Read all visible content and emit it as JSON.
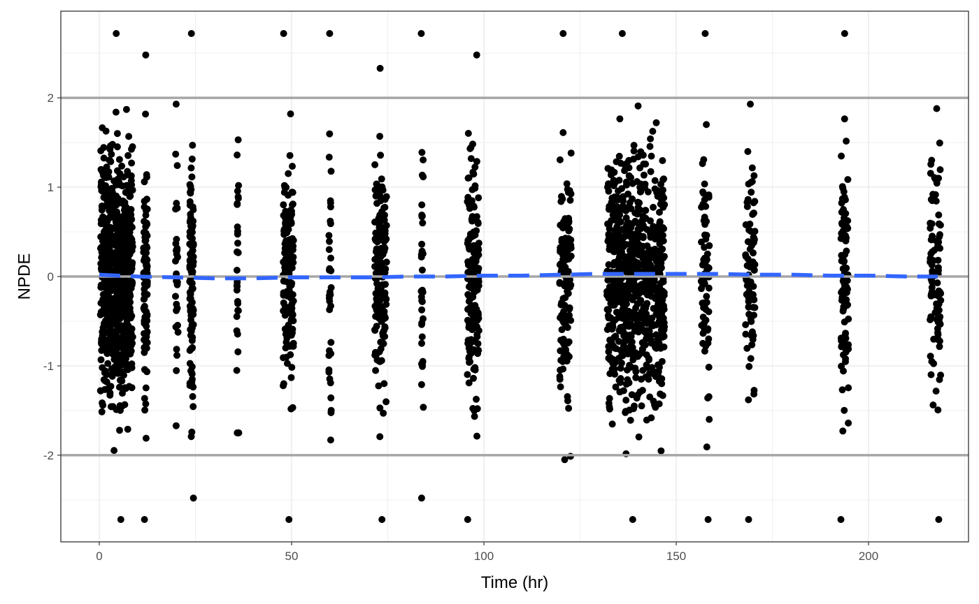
{
  "chart_data": {
    "type": "scatter",
    "title": "",
    "xlabel": "Time (hr)",
    "ylabel": "NPDE",
    "xlim": [
      -10,
      226
    ],
    "ylim": [
      -2.97,
      2.97
    ],
    "x_ticks": [
      0,
      50,
      100,
      150,
      200
    ],
    "x_tick_labels": [
      "0",
      "50",
      "100",
      "150",
      "200"
    ],
    "y_ticks": [
      -2,
      -1,
      0,
      1,
      2
    ],
    "y_tick_labels": [
      "-2",
      "-1",
      "0",
      "1",
      "2"
    ],
    "grid": true,
    "theme": "bw",
    "reference_lines": [
      -2,
      0,
      2
    ],
    "colors": {
      "points": "#000000",
      "smooth": "#3366FF",
      "reference": "#A6A6A6",
      "grid": "#EBEBEB",
      "panel_border": "#333333"
    },
    "smooth_line": {
      "style": "dashed",
      "x": [
        0,
        10,
        20,
        30,
        40,
        50,
        60,
        70,
        80,
        90,
        100,
        110,
        120,
        130,
        140,
        150,
        160,
        170,
        180,
        190,
        200,
        210,
        218
      ],
      "y": [
        0.02,
        0.0,
        -0.01,
        -0.02,
        -0.02,
        -0.01,
        -0.01,
        -0.01,
        0.0,
        0.0,
        0.01,
        0.01,
        0.02,
        0.03,
        0.03,
        0.03,
        0.03,
        0.02,
        0.02,
        0.01,
        0.01,
        0.0,
        0.0
      ]
    },
    "point_columns": [
      {
        "x_min": 0.3,
        "x_max": 8.7,
        "y_min": -2.72,
        "y_max": 2.72,
        "n": 780
      },
      {
        "x_min": 11.5,
        "x_max": 12.5,
        "y_min": -2.72,
        "y_max": 2.48,
        "n": 90
      },
      {
        "x_min": 19.8,
        "x_max": 20.5,
        "y_min": -1.67,
        "y_max": 1.93,
        "n": 30
      },
      {
        "x_min": 23.5,
        "x_max": 24.5,
        "y_min": -2.48,
        "y_max": 2.72,
        "n": 110
      },
      {
        "x_min": 35.7,
        "x_max": 36.3,
        "y_min": -1.75,
        "y_max": 1.53,
        "n": 30
      },
      {
        "x_min": 47.8,
        "x_max": 50.5,
        "y_min": -2.72,
        "y_max": 2.72,
        "n": 160
      },
      {
        "x_min": 59.7,
        "x_max": 60.3,
        "y_min": -1.83,
        "y_max": 2.72,
        "n": 35
      },
      {
        "x_min": 71.6,
        "x_max": 74.7,
        "y_min": -2.72,
        "y_max": 2.33,
        "n": 160
      },
      {
        "x_min": 83.7,
        "x_max": 84.3,
        "y_min": -2.48,
        "y_max": 2.72,
        "n": 35
      },
      {
        "x_min": 95.7,
        "x_max": 98.7,
        "y_min": -2.72,
        "y_max": 2.48,
        "n": 170
      },
      {
        "x_min": 119.7,
        "x_max": 122.7,
        "y_min": -2.05,
        "y_max": 2.72,
        "n": 130
      },
      {
        "x_min": 132.0,
        "x_max": 147.0,
        "y_min": -2.72,
        "y_max": 2.72,
        "n": 760
      },
      {
        "x_min": 156.5,
        "x_max": 158.6,
        "y_min": -2.72,
        "y_max": 2.72,
        "n": 80
      },
      {
        "x_min": 168.0,
        "x_max": 170.5,
        "y_min": -2.72,
        "y_max": 1.93,
        "n": 80
      },
      {
        "x_min": 192.8,
        "x_max": 194.8,
        "y_min": -2.72,
        "y_max": 2.72,
        "n": 90
      },
      {
        "x_min": 216.0,
        "x_max": 218.8,
        "y_min": -2.72,
        "y_max": 1.88,
        "n": 90
      }
    ]
  }
}
